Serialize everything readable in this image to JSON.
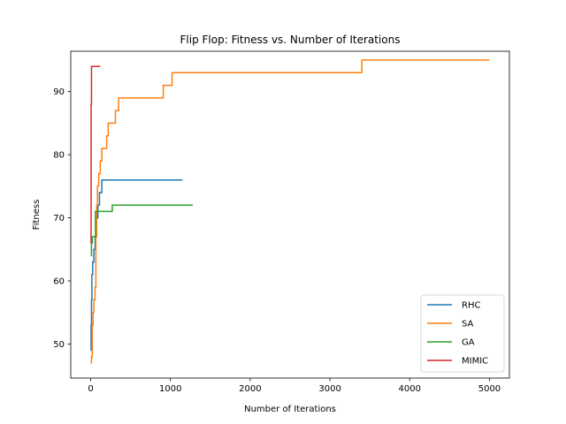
{
  "chart_data": {
    "type": "line",
    "title": "Flip Flop: Fitness vs. Number of Iterations",
    "xlabel": "Number of Iterations",
    "ylabel": "Fitness",
    "xlim": [
      -250,
      5250
    ],
    "ylim": [
      44.6,
      96.4
    ],
    "xticks": [
      0,
      1000,
      2000,
      3000,
      4000,
      5000
    ],
    "yticks": [
      50,
      60,
      70,
      80,
      90
    ],
    "grid": false,
    "legend_position": "lower right",
    "step": true,
    "series": [
      {
        "name": "RHC",
        "color": "#1f77b4",
        "points": [
          [
            0,
            49
          ],
          [
            5,
            53
          ],
          [
            10,
            57
          ],
          [
            15,
            61
          ],
          [
            25,
            63
          ],
          [
            40,
            65
          ],
          [
            55,
            67
          ],
          [
            70,
            70
          ],
          [
            90,
            72
          ],
          [
            110,
            74
          ],
          [
            140,
            76
          ],
          [
            1150,
            76
          ]
        ]
      },
      {
        "name": "SA",
        "color": "#ff7f0e",
        "points": [
          [
            0,
            47
          ],
          [
            10,
            48
          ],
          [
            20,
            53
          ],
          [
            30,
            55
          ],
          [
            40,
            57
          ],
          [
            55,
            59
          ],
          [
            65,
            67
          ],
          [
            75,
            72
          ],
          [
            85,
            75
          ],
          [
            100,
            77
          ],
          [
            120,
            79
          ],
          [
            140,
            81
          ],
          [
            200,
            83
          ],
          [
            220,
            85
          ],
          [
            310,
            87
          ],
          [
            350,
            89
          ],
          [
            910,
            91
          ],
          [
            1020,
            93
          ],
          [
            3400,
            95
          ],
          [
            5000,
            95
          ]
        ]
      },
      {
        "name": "GA",
        "color": "#2ca02c",
        "points": [
          [
            0,
            64
          ],
          [
            10,
            66
          ],
          [
            20,
            67
          ],
          [
            60,
            71
          ],
          [
            270,
            72
          ],
          [
            1280,
            72
          ]
        ]
      },
      {
        "name": "MIMIC",
        "color": "#d62728",
        "points": [
          [
            0,
            66
          ],
          [
            5,
            88
          ],
          [
            10,
            94
          ],
          [
            120,
            94
          ]
        ]
      }
    ]
  }
}
